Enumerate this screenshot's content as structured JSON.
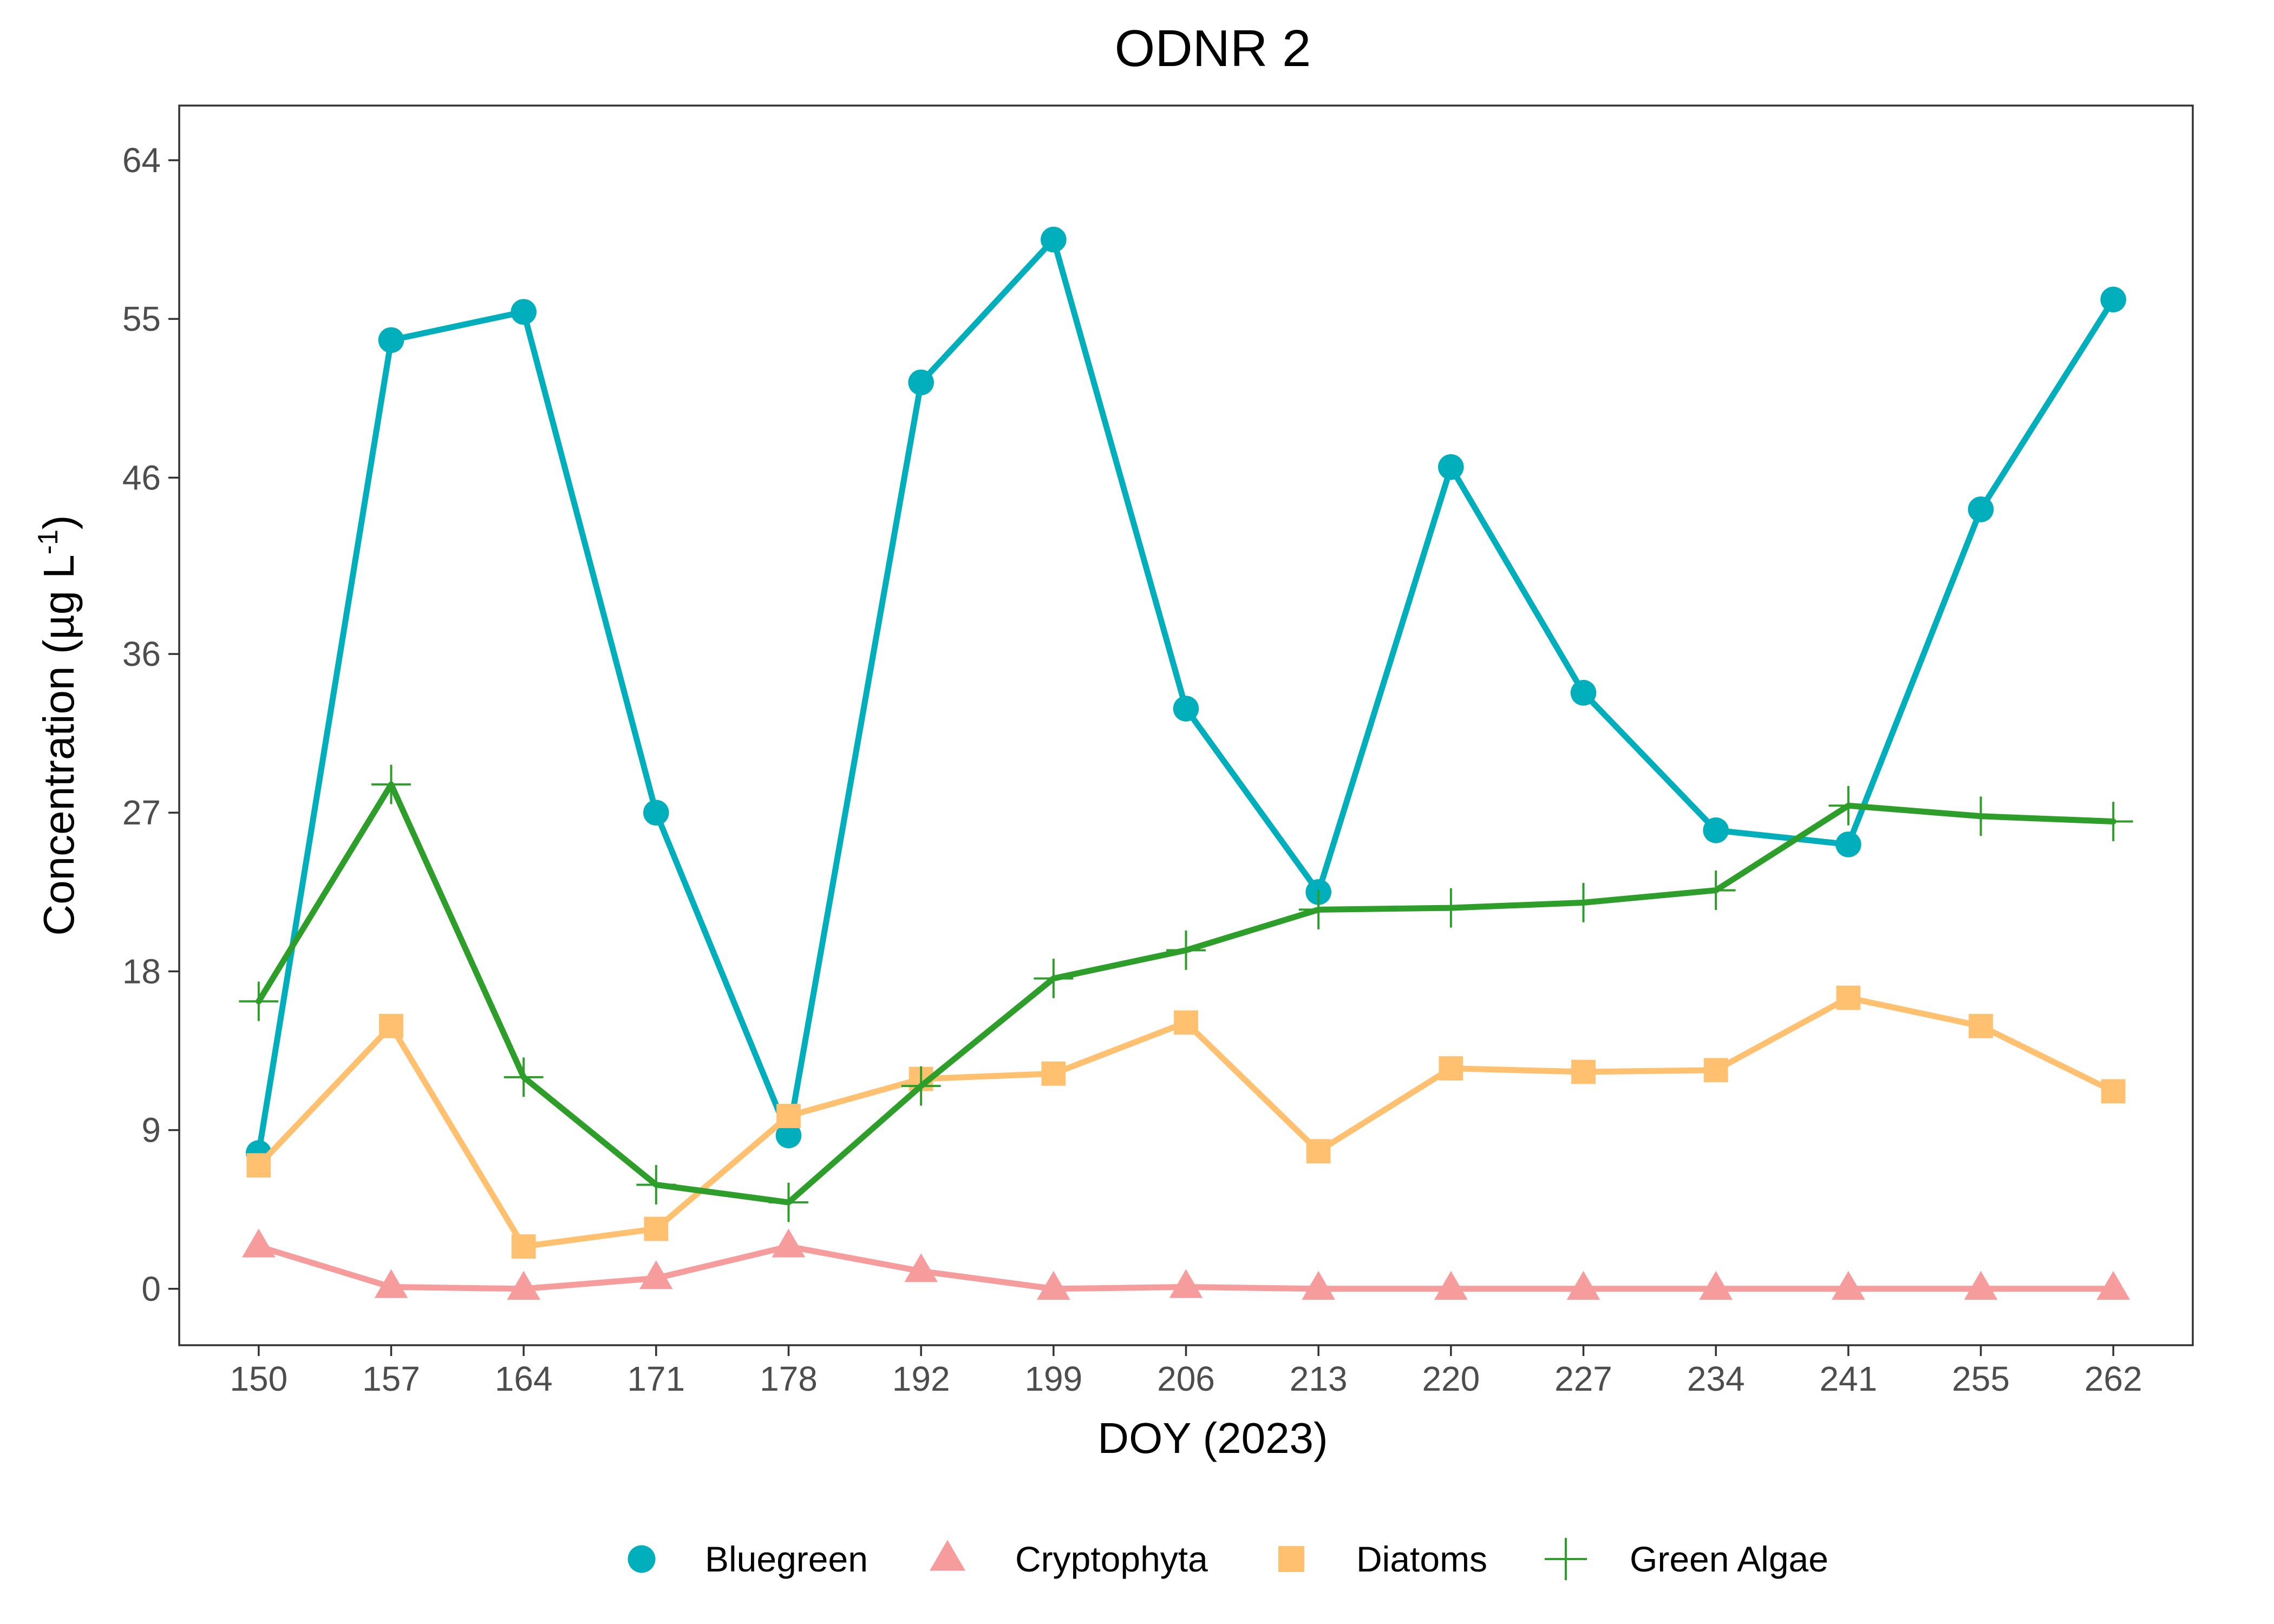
{
  "chart_data": {
    "type": "line",
    "title": "ODNR 2",
    "xlabel": "DOY (2023)",
    "ylabel": "Concentration (µg L⁻¹)",
    "ylabel_main": "Concentration (µg L",
    "ylabel_sup": "-1",
    "ylabel_close": ")",
    "categories": [
      "150",
      "157",
      "164",
      "171",
      "178",
      "192",
      "199",
      "206",
      "213",
      "220",
      "227",
      "234",
      "241",
      "255",
      "262"
    ],
    "y_ticks": [
      0,
      9,
      18,
      27,
      36,
      46,
      55,
      64
    ],
    "ylim": [
      -3.2,
      67.1
    ],
    "grid": false,
    "legend_position": "bottom",
    "series": [
      {
        "name": "Bluegreen",
        "color": "#00AFBB",
        "marker": "circle",
        "values": [
          7.7,
          53.8,
          55.4,
          27.0,
          8.7,
          51.4,
          59.5,
          32.9,
          22.5,
          46.6,
          33.8,
          26.0,
          25.2,
          44.2,
          56.1
        ]
      },
      {
        "name": "Cryptophyta",
        "color": "#F79C9C",
        "marker": "triangle",
        "values": [
          2.4,
          0.1,
          0.0,
          0.6,
          2.4,
          1.0,
          0.0,
          0.1,
          0.0,
          0.0,
          0.0,
          0.0,
          0.0,
          0.0,
          0.0
        ]
      },
      {
        "name": "Diatoms",
        "color": "#FFC06F",
        "marker": "square",
        "values": [
          7.0,
          14.9,
          2.4,
          3.4,
          9.8,
          11.9,
          12.2,
          15.1,
          7.8,
          12.5,
          12.3,
          12.4,
          16.5,
          14.9,
          11.2
        ]
      },
      {
        "name": "Green Algae",
        "color": "#2E9E2A",
        "marker": "plus",
        "values": [
          16.3,
          28.6,
          12.0,
          5.9,
          4.9,
          11.5,
          17.6,
          19.2,
          21.5,
          21.6,
          21.9,
          22.6,
          27.4,
          26.8,
          26.5
        ]
      }
    ]
  }
}
